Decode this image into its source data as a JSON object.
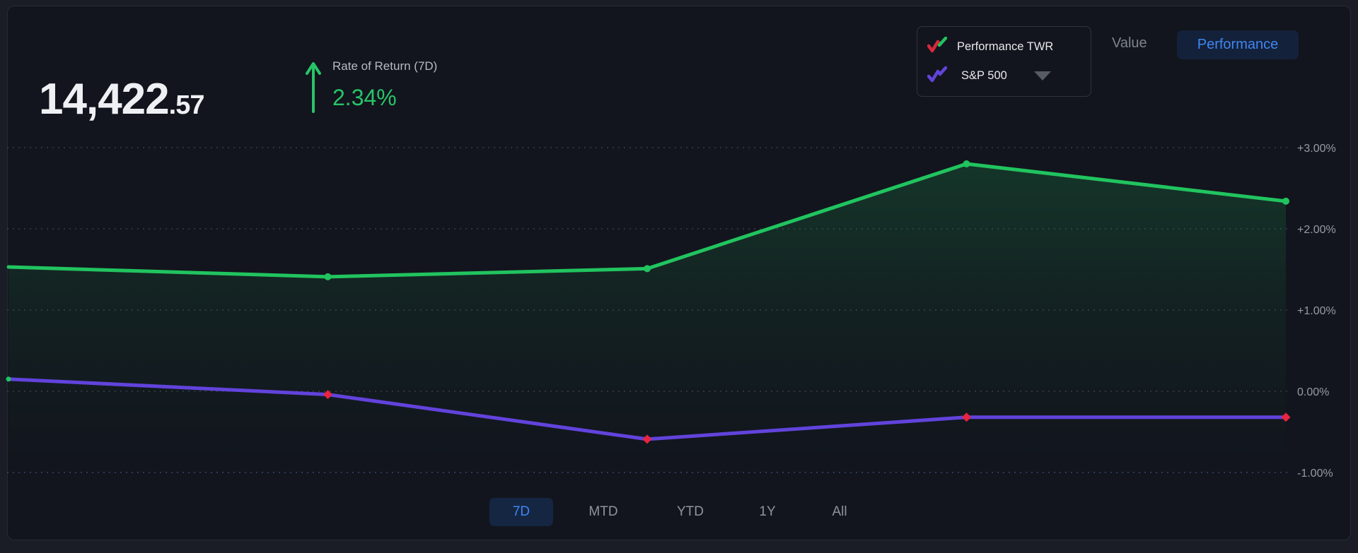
{
  "header": {
    "value_integer": "14,422",
    "value_decimal": ".57",
    "rate_of_return_label": "Rate of Return (7D)",
    "rate_of_return_value": "2.34%"
  },
  "legend": {
    "items": [
      {
        "label": "Performance TWR"
      },
      {
        "label": "S&P 500",
        "has_dropdown": true
      }
    ]
  },
  "view_toggle": {
    "value_label": "Value",
    "performance_label": "Performance",
    "active": "Performance"
  },
  "time_range_tabs": [
    {
      "label": "7D",
      "active": true
    },
    {
      "label": "MTD",
      "active": false
    },
    {
      "label": "YTD",
      "active": false
    },
    {
      "label": "1Y",
      "active": false
    },
    {
      "label": "All",
      "active": false
    }
  ],
  "colors": {
    "performance_line": "#21c45f",
    "sp500_line": "#6243dc",
    "sp500_marker_red": "#e8243f",
    "active_blue": "#3e86f3",
    "positive_green": "#27c468",
    "grid": "#42464f",
    "grid_minus_one": "#42527f",
    "tick_text": "#969ba5"
  },
  "chart_data": {
    "type": "line",
    "title": "Portfolio rate of return vs S&P 500 (7D)",
    "x": [
      0,
      1,
      2,
      3,
      4
    ],
    "series": [
      {
        "name": "Performance TWR",
        "color": "#21c45f",
        "marker": "circle",
        "values": [
          1.53,
          1.41,
          1.51,
          2.8,
          2.34
        ],
        "area_fill": true
      },
      {
        "name": "S&P 500",
        "color": "#6243dc",
        "marker": "diamond",
        "marker_color": "#e8243f",
        "values": [
          0.15,
          -0.04,
          -0.59,
          -0.32,
          -0.32
        ]
      }
    ],
    "y_axis": {
      "ticks": [
        {
          "value": 3,
          "label": "+3.00%"
        },
        {
          "value": 2,
          "label": "+2.00%"
        },
        {
          "value": 1,
          "label": "+1.00%"
        },
        {
          "value": 0,
          "label": "0.00%"
        },
        {
          "value": -1,
          "label": "-1.00%"
        }
      ]
    },
    "ylim": [
      -1.9,
      3.0
    ],
    "grid": "horizontal-dashed",
    "legend_position": "top-right"
  }
}
